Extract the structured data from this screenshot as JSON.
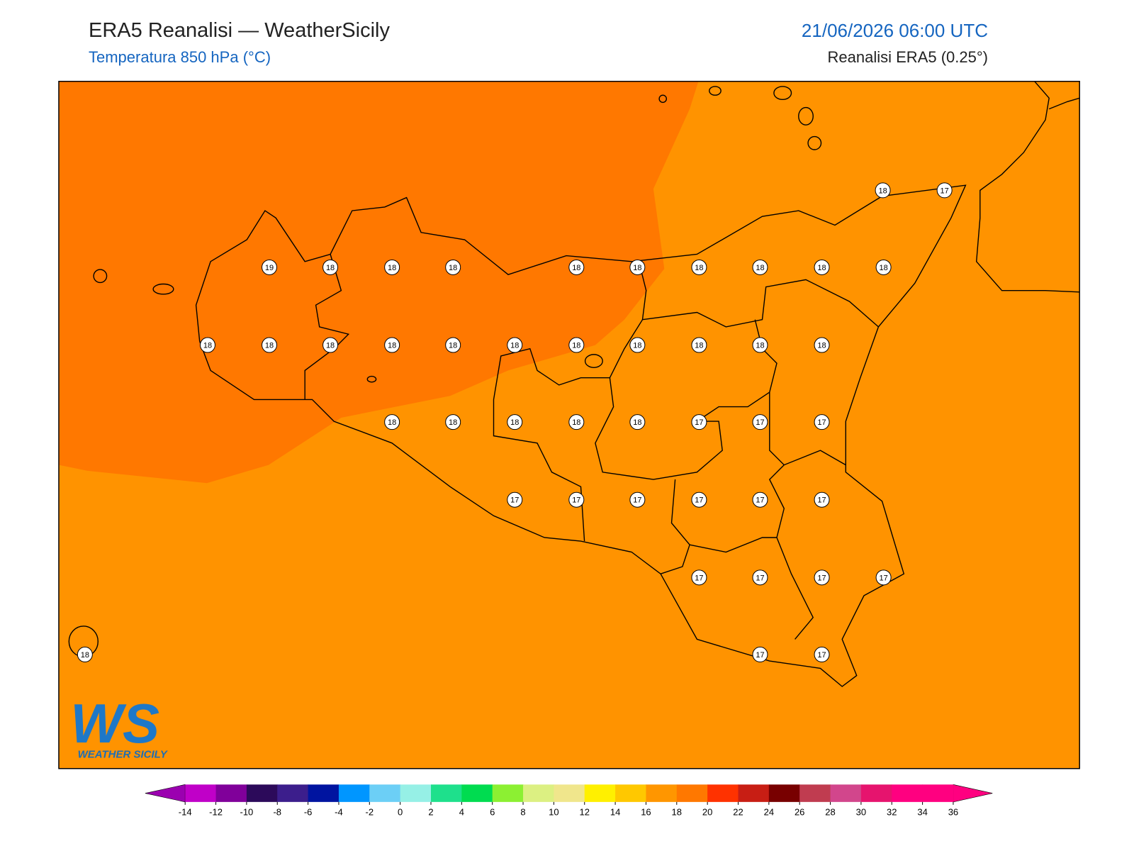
{
  "header": {
    "title": "ERA5 Reanalisi — WeatherSicily",
    "subtitle": "Temperatura 850 hPa (°C)",
    "datetime": "21/06/2026 06:00 UTC",
    "source": "Reanalisi ERA5 (0.25°)"
  },
  "map": {
    "field_colors": [
      "#ff7800",
      "#ff9300"
    ],
    "station_values": [
      19,
      18,
      18,
      18,
      18,
      18,
      18,
      18,
      18,
      18,
      18,
      17,
      18,
      18,
      18,
      18,
      18,
      18,
      18,
      18,
      18,
      18,
      18,
      18,
      18,
      18,
      18,
      18,
      17,
      17,
      17,
      17,
      17,
      17,
      17,
      17,
      17,
      17,
      17,
      17,
      17,
      18,
      17,
      17
    ]
  },
  "colorbar": {
    "ticks": [
      -14,
      -12,
      -10,
      -8,
      -6,
      -4,
      -2,
      0,
      2,
      4,
      6,
      8,
      10,
      12,
      14,
      16,
      18,
      20,
      22,
      24,
      26,
      28,
      30,
      32,
      34,
      36
    ],
    "under": "#9b00b0",
    "over": "#ff0080",
    "colors": [
      "#c000c8",
      "#80009a",
      "#2c0a5a",
      "#3c1e8c",
      "#0014a0",
      "#0096ff",
      "#6ccff6",
      "#96f0e6",
      "#1ee08c",
      "#00dc50",
      "#8cf032",
      "#dcf082",
      "#f0e68c",
      "#fff000",
      "#ffc800",
      "#ff9600",
      "#ff7800",
      "#ff3200",
      "#c81e14",
      "#780000",
      "#c03c50",
      "#d2468c",
      "#e6146e",
      "#ff0080",
      "#ff0080"
    ]
  },
  "logo": {
    "mark": "WS",
    "text": "WEATHER SICILY"
  }
}
